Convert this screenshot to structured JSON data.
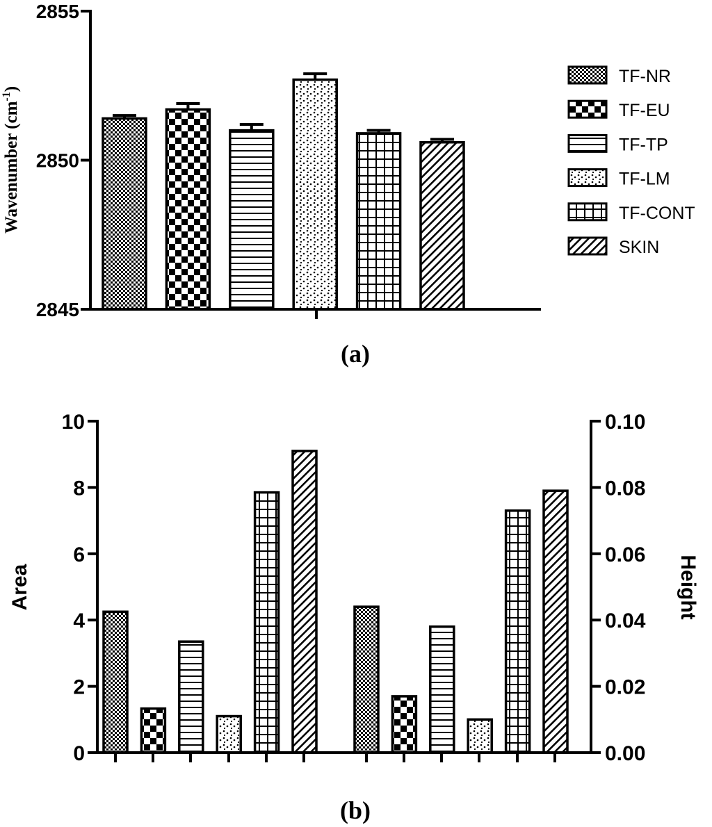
{
  "colors": {
    "ink": "#000000",
    "paper": "#ffffff"
  },
  "chart_data": [
    {
      "type": "bar",
      "panel_label": "(a)",
      "title": "",
      "xlabel": "",
      "ylabel_main": "Wavenumber (cm",
      "ylabel_sup": "-1",
      "ylabel_close": ")",
      "ylim": [
        2845,
        2855
      ],
      "yticks": [
        "2845",
        "2850",
        "2855"
      ],
      "ytick_values": [
        2845,
        2850,
        2855
      ],
      "categories": [
        "TF-NR",
        "TF-EU",
        "TF-TP",
        "TF-LM",
        "TF-CONT",
        "SKIN"
      ],
      "values": [
        2851.4,
        2851.7,
        2851.0,
        2852.7,
        2850.9,
        2850.6
      ],
      "errors": [
        0.1,
        0.2,
        0.2,
        0.2,
        0.1,
        0.1
      ],
      "legend": {
        "position": "right",
        "entries": [
          "TF-NR",
          "TF-EU",
          "TF-TP",
          "TF-LM",
          "TF-CONT",
          "SKIN"
        ]
      }
    },
    {
      "type": "bar",
      "panel_label": "(b)",
      "title": "",
      "xlabel": "",
      "ylabel_left": "Area",
      "ylabel_right": "Height",
      "ylim_left": [
        0,
        10
      ],
      "ylim_right": [
        0,
        0.1
      ],
      "yticks_left": [
        "0",
        "2",
        "4",
        "6",
        "8",
        "10"
      ],
      "ytick_values_left": [
        0,
        2,
        4,
        6,
        8,
        10
      ],
      "yticks_right": [
        "0.00",
        "0.02",
        "0.04",
        "0.06",
        "0.08",
        "0.10"
      ],
      "ytick_values_right": [
        0,
        0.02,
        0.04,
        0.06,
        0.08,
        0.1
      ],
      "categories": [
        "TF-NR",
        "TF-EU",
        "TF-TP",
        "TF-LM",
        "TF-CONT",
        "SKIN"
      ],
      "series": [
        {
          "name": "Area",
          "axis": "left",
          "values": [
            4.25,
            1.33,
            3.35,
            1.1,
            7.85,
            9.1
          ]
        },
        {
          "name": "Height",
          "axis": "right",
          "values": [
            0.044,
            0.017,
            0.038,
            0.01,
            0.073,
            0.079
          ]
        }
      ]
    }
  ]
}
